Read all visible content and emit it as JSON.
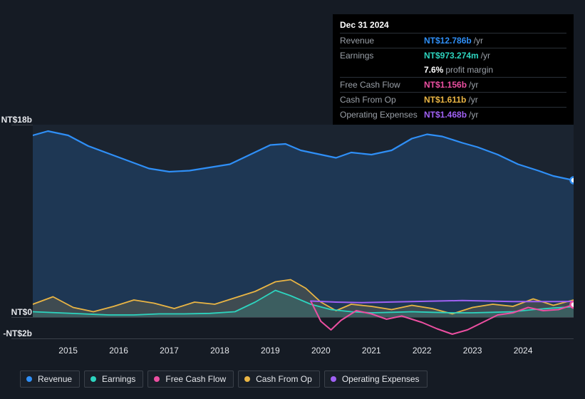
{
  "tooltip": {
    "date": "Dec 31 2024",
    "rows": [
      {
        "label": "Revenue",
        "value": "NT$12.786b",
        "unit": "/yr",
        "color": "#2f8ff7",
        "note": null
      },
      {
        "label": "Earnings",
        "value": "NT$973.274m",
        "unit": "/yr",
        "color": "#2dd4bf",
        "note": null
      },
      {
        "label": "",
        "value": "7.6%",
        "unit": "",
        "color": "#ffffff",
        "note": "profit margin"
      },
      {
        "label": "Free Cash Flow",
        "value": "NT$1.156b",
        "unit": "/yr",
        "color": "#ec4fa1",
        "note": null
      },
      {
        "label": "Cash From Op",
        "value": "NT$1.611b",
        "unit": "/yr",
        "color": "#eab544",
        "note": null
      },
      {
        "label": "Operating Expenses",
        "value": "NT$1.468b",
        "unit": "/yr",
        "color": "#a061f4",
        "note": null
      }
    ]
  },
  "legend": [
    {
      "label": "Revenue",
      "color": "#2f8ff7"
    },
    {
      "label": "Earnings",
      "color": "#2dd4bf"
    },
    {
      "label": "Free Cash Flow",
      "color": "#ec4fa1"
    },
    {
      "label": "Cash From Op",
      "color": "#eab544"
    },
    {
      "label": "Operating Expenses",
      "color": "#a061f4"
    }
  ],
  "chart": {
    "type": "line-area",
    "background_color": "#151b24",
    "grid_color": "#3a4049",
    "font_size": 12,
    "y_axis": {
      "min_b": -2,
      "max_b": 18,
      "ticks": [
        {
          "value": 18,
          "label": "NT$18b"
        },
        {
          "value": 0,
          "label": "NT$0"
        },
        {
          "value": -2,
          "label": "-NT$2b"
        }
      ]
    },
    "x_axis": {
      "years": [
        2015,
        2016,
        2017,
        2018,
        2019,
        2020,
        2021,
        2022,
        2023,
        2024
      ],
      "min_year": 2014.3,
      "max_year": 2025.0
    },
    "series": [
      {
        "name": "Revenue",
        "color": "#2f8ff7",
        "fill_opacity": 0.18,
        "stroke_width": 2.2,
        "points": [
          [
            2014.3,
            17.0
          ],
          [
            2014.6,
            17.4
          ],
          [
            2015.0,
            17.0
          ],
          [
            2015.4,
            16.0
          ],
          [
            2015.8,
            15.3
          ],
          [
            2016.2,
            14.6
          ],
          [
            2016.6,
            13.9
          ],
          [
            2017.0,
            13.6
          ],
          [
            2017.4,
            13.7
          ],
          [
            2017.8,
            14.0
          ],
          [
            2018.2,
            14.3
          ],
          [
            2018.6,
            15.2
          ],
          [
            2019.0,
            16.1
          ],
          [
            2019.3,
            16.2
          ],
          [
            2019.6,
            15.6
          ],
          [
            2020.0,
            15.2
          ],
          [
            2020.3,
            14.9
          ],
          [
            2020.6,
            15.4
          ],
          [
            2021.0,
            15.2
          ],
          [
            2021.4,
            15.6
          ],
          [
            2021.8,
            16.7
          ],
          [
            2022.1,
            17.1
          ],
          [
            2022.4,
            16.9
          ],
          [
            2022.8,
            16.3
          ],
          [
            2023.1,
            15.9
          ],
          [
            2023.5,
            15.2
          ],
          [
            2023.9,
            14.3
          ],
          [
            2024.3,
            13.7
          ],
          [
            2024.6,
            13.2
          ],
          [
            2025.0,
            12.8
          ]
        ]
      },
      {
        "name": "Cash From Op",
        "color": "#eab544",
        "fill_opacity": 0.16,
        "stroke_width": 1.8,
        "points": [
          [
            2014.3,
            1.2
          ],
          [
            2014.7,
            1.9
          ],
          [
            2015.1,
            0.9
          ],
          [
            2015.5,
            0.5
          ],
          [
            2015.9,
            1.0
          ],
          [
            2016.3,
            1.6
          ],
          [
            2016.7,
            1.3
          ],
          [
            2017.1,
            0.8
          ],
          [
            2017.5,
            1.4
          ],
          [
            2017.9,
            1.2
          ],
          [
            2018.3,
            1.8
          ],
          [
            2018.7,
            2.4
          ],
          [
            2019.1,
            3.3
          ],
          [
            2019.4,
            3.5
          ],
          [
            2019.7,
            2.7
          ],
          [
            2020.0,
            1.4
          ],
          [
            2020.3,
            0.6
          ],
          [
            2020.6,
            1.2
          ],
          [
            2021.0,
            1.0
          ],
          [
            2021.4,
            0.7
          ],
          [
            2021.8,
            1.1
          ],
          [
            2022.2,
            0.8
          ],
          [
            2022.6,
            0.3
          ],
          [
            2023.0,
            0.9
          ],
          [
            2023.4,
            1.2
          ],
          [
            2023.8,
            1.0
          ],
          [
            2024.2,
            1.7
          ],
          [
            2024.6,
            1.1
          ],
          [
            2025.0,
            1.6
          ]
        ]
      },
      {
        "name": "Earnings",
        "color": "#2dd4bf",
        "fill_opacity": 0.14,
        "stroke_width": 1.8,
        "points": [
          [
            2014.3,
            0.5
          ],
          [
            2014.8,
            0.4
          ],
          [
            2015.3,
            0.3
          ],
          [
            2015.8,
            0.2
          ],
          [
            2016.3,
            0.2
          ],
          [
            2016.8,
            0.3
          ],
          [
            2017.3,
            0.3
          ],
          [
            2017.8,
            0.35
          ],
          [
            2018.3,
            0.5
          ],
          [
            2018.7,
            1.4
          ],
          [
            2019.1,
            2.5
          ],
          [
            2019.4,
            2.0
          ],
          [
            2019.8,
            1.2
          ],
          [
            2020.2,
            0.7
          ],
          [
            2020.6,
            0.5
          ],
          [
            2021.0,
            0.4
          ],
          [
            2021.4,
            0.45
          ],
          [
            2021.8,
            0.5
          ],
          [
            2022.2,
            0.45
          ],
          [
            2022.6,
            0.4
          ],
          [
            2023.0,
            0.4
          ],
          [
            2023.4,
            0.45
          ],
          [
            2023.8,
            0.5
          ],
          [
            2024.2,
            0.7
          ],
          [
            2024.6,
            0.85
          ],
          [
            2025.0,
            0.97
          ]
        ]
      },
      {
        "name": "Free Cash Flow",
        "color": "#ec4fa1",
        "fill_opacity": 0.0,
        "stroke_width": 2,
        "points": [
          [
            2019.8,
            1.5
          ],
          [
            2020.0,
            -0.4
          ],
          [
            2020.2,
            -1.2
          ],
          [
            2020.4,
            -0.3
          ],
          [
            2020.7,
            0.6
          ],
          [
            2021.0,
            0.3
          ],
          [
            2021.3,
            -0.2
          ],
          [
            2021.6,
            0.1
          ],
          [
            2022.0,
            -0.5
          ],
          [
            2022.3,
            -1.1
          ],
          [
            2022.6,
            -1.6
          ],
          [
            2022.9,
            -1.2
          ],
          [
            2023.2,
            -0.5
          ],
          [
            2023.5,
            0.2
          ],
          [
            2023.8,
            0.4
          ],
          [
            2024.1,
            0.9
          ],
          [
            2024.4,
            0.6
          ],
          [
            2024.7,
            0.7
          ],
          [
            2025.0,
            1.16
          ]
        ]
      },
      {
        "name": "Operating Expenses",
        "color": "#a061f4",
        "fill_opacity": 0.0,
        "stroke_width": 2,
        "points": [
          [
            2019.8,
            1.5
          ],
          [
            2020.3,
            1.4
          ],
          [
            2020.8,
            1.35
          ],
          [
            2021.3,
            1.4
          ],
          [
            2021.8,
            1.45
          ],
          [
            2022.3,
            1.5
          ],
          [
            2022.8,
            1.55
          ],
          [
            2023.3,
            1.5
          ],
          [
            2023.8,
            1.45
          ],
          [
            2024.3,
            1.45
          ],
          [
            2024.7,
            1.45
          ],
          [
            2025.0,
            1.47
          ]
        ]
      }
    ],
    "end_markers": [
      {
        "series": "Revenue",
        "color": "#2f8ff7",
        "x": 2025.0,
        "y": 12.8
      },
      {
        "series": "Free Cash Flow",
        "color": "#ec4fa1",
        "x": 2025.0,
        "y": 1.16
      }
    ]
  }
}
